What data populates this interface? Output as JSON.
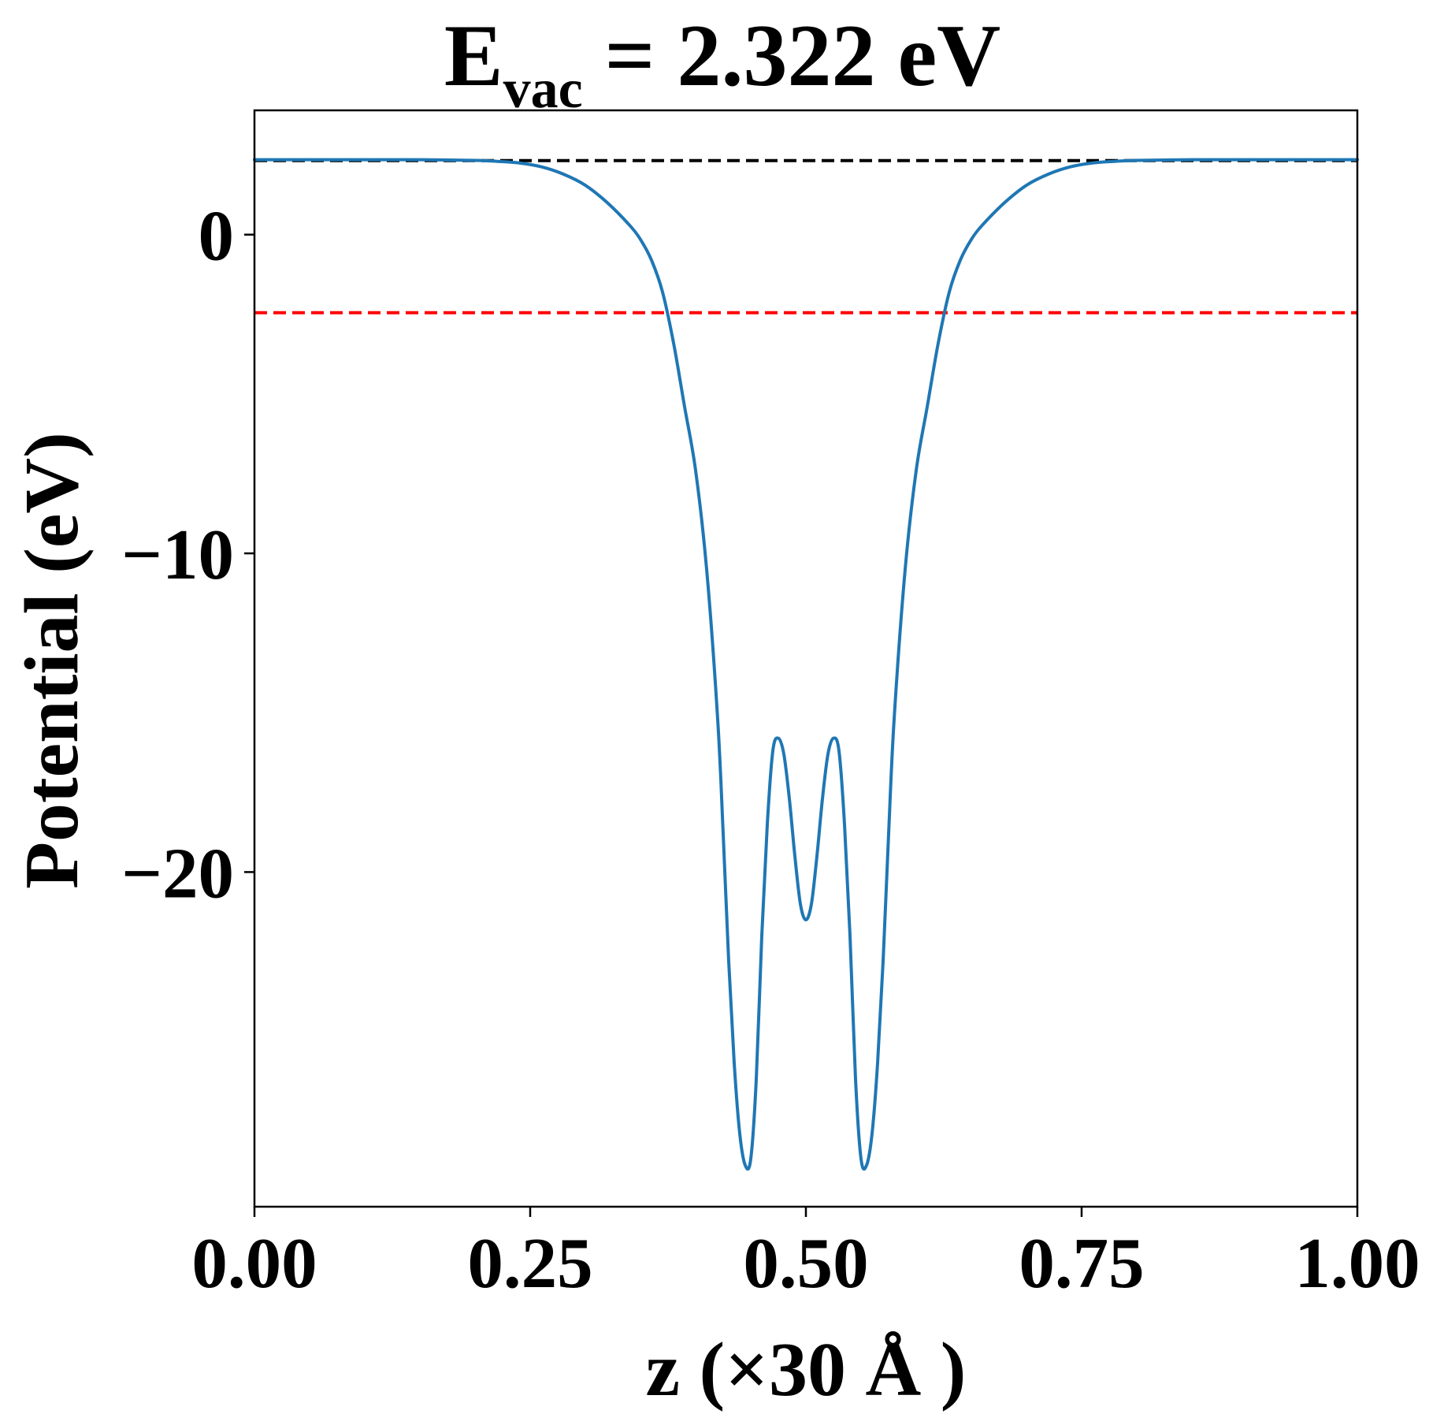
{
  "chart_data": {
    "type": "line",
    "title": {
      "main": "E",
      "subscript": "vac",
      "rest": " = 2.322 eV"
    },
    "xlabel": "z (×30 Å )",
    "ylabel": "Potential (eV)",
    "xlim": [
      0,
      1
    ],
    "ylim": [
      -30.5,
      3.9
    ],
    "grid": false,
    "legend": "none",
    "x_ticks": [
      {
        "value": 0.0,
        "label": "0.00"
      },
      {
        "value": 0.25,
        "label": "0.25"
      },
      {
        "value": 0.5,
        "label": "0.50"
      },
      {
        "value": 0.75,
        "label": "0.75"
      },
      {
        "value": 1.0,
        "label": "1.00"
      }
    ],
    "y_ticks": [
      {
        "value": 0,
        "label": "0"
      },
      {
        "value": -10,
        "label": "−10"
      },
      {
        "value": -20,
        "label": "−20"
      }
    ],
    "reference_lines": [
      {
        "y": 2.322,
        "color": "#000000",
        "style": "dashed"
      },
      {
        "y": -2.45,
        "color": "#ff0000",
        "style": "dashed"
      }
    ],
    "series": [
      {
        "color": "#1f77b4",
        "x": [
          0.0,
          0.05,
          0.1,
          0.15,
          0.2,
          0.22,
          0.24,
          0.26,
          0.28,
          0.3,
          0.32,
          0.34,
          0.35,
          0.36,
          0.37,
          0.38,
          0.39,
          0.4,
          0.41,
          0.42,
          0.425,
          0.43,
          0.435,
          0.44,
          0.445,
          0.45,
          0.455,
          0.46,
          0.465,
          0.47,
          0.475,
          0.48,
          0.485,
          0.49,
          0.495,
          0.5,
          0.505,
          0.51,
          0.515,
          0.52,
          0.525,
          0.53,
          0.535,
          0.54,
          0.545,
          0.55,
          0.555,
          0.56,
          0.565,
          0.57,
          0.575,
          0.58,
          0.59,
          0.6,
          0.61,
          0.62,
          0.63,
          0.64,
          0.65,
          0.66,
          0.68,
          0.7,
          0.72,
          0.74,
          0.76,
          0.78,
          0.8,
          0.85,
          0.9,
          0.95,
          1.0
        ],
        "y": [
          2.35,
          2.35,
          2.35,
          2.35,
          2.33,
          2.3,
          2.25,
          2.13,
          1.9,
          1.55,
          1.0,
          0.3,
          -0.15,
          -0.8,
          -1.8,
          -3.4,
          -5.4,
          -7.4,
          -10.5,
          -15.2,
          -18.8,
          -22.8,
          -26.0,
          -28.2,
          -29.2,
          -29.0,
          -26.5,
          -22.0,
          -18.5,
          -16.2,
          -15.8,
          -16.3,
          -17.7,
          -19.5,
          -21.0,
          -21.5,
          -21.0,
          -19.5,
          -17.7,
          -16.3,
          -15.8,
          -16.2,
          -18.5,
          -22.0,
          -26.5,
          -29.0,
          -29.2,
          -28.2,
          -26.0,
          -22.8,
          -18.8,
          -15.2,
          -10.5,
          -7.4,
          -5.4,
          -3.4,
          -1.8,
          -0.8,
          -0.15,
          0.3,
          1.0,
          1.55,
          1.9,
          2.13,
          2.25,
          2.3,
          2.33,
          2.35,
          2.35,
          2.35,
          2.35
        ]
      }
    ]
  }
}
